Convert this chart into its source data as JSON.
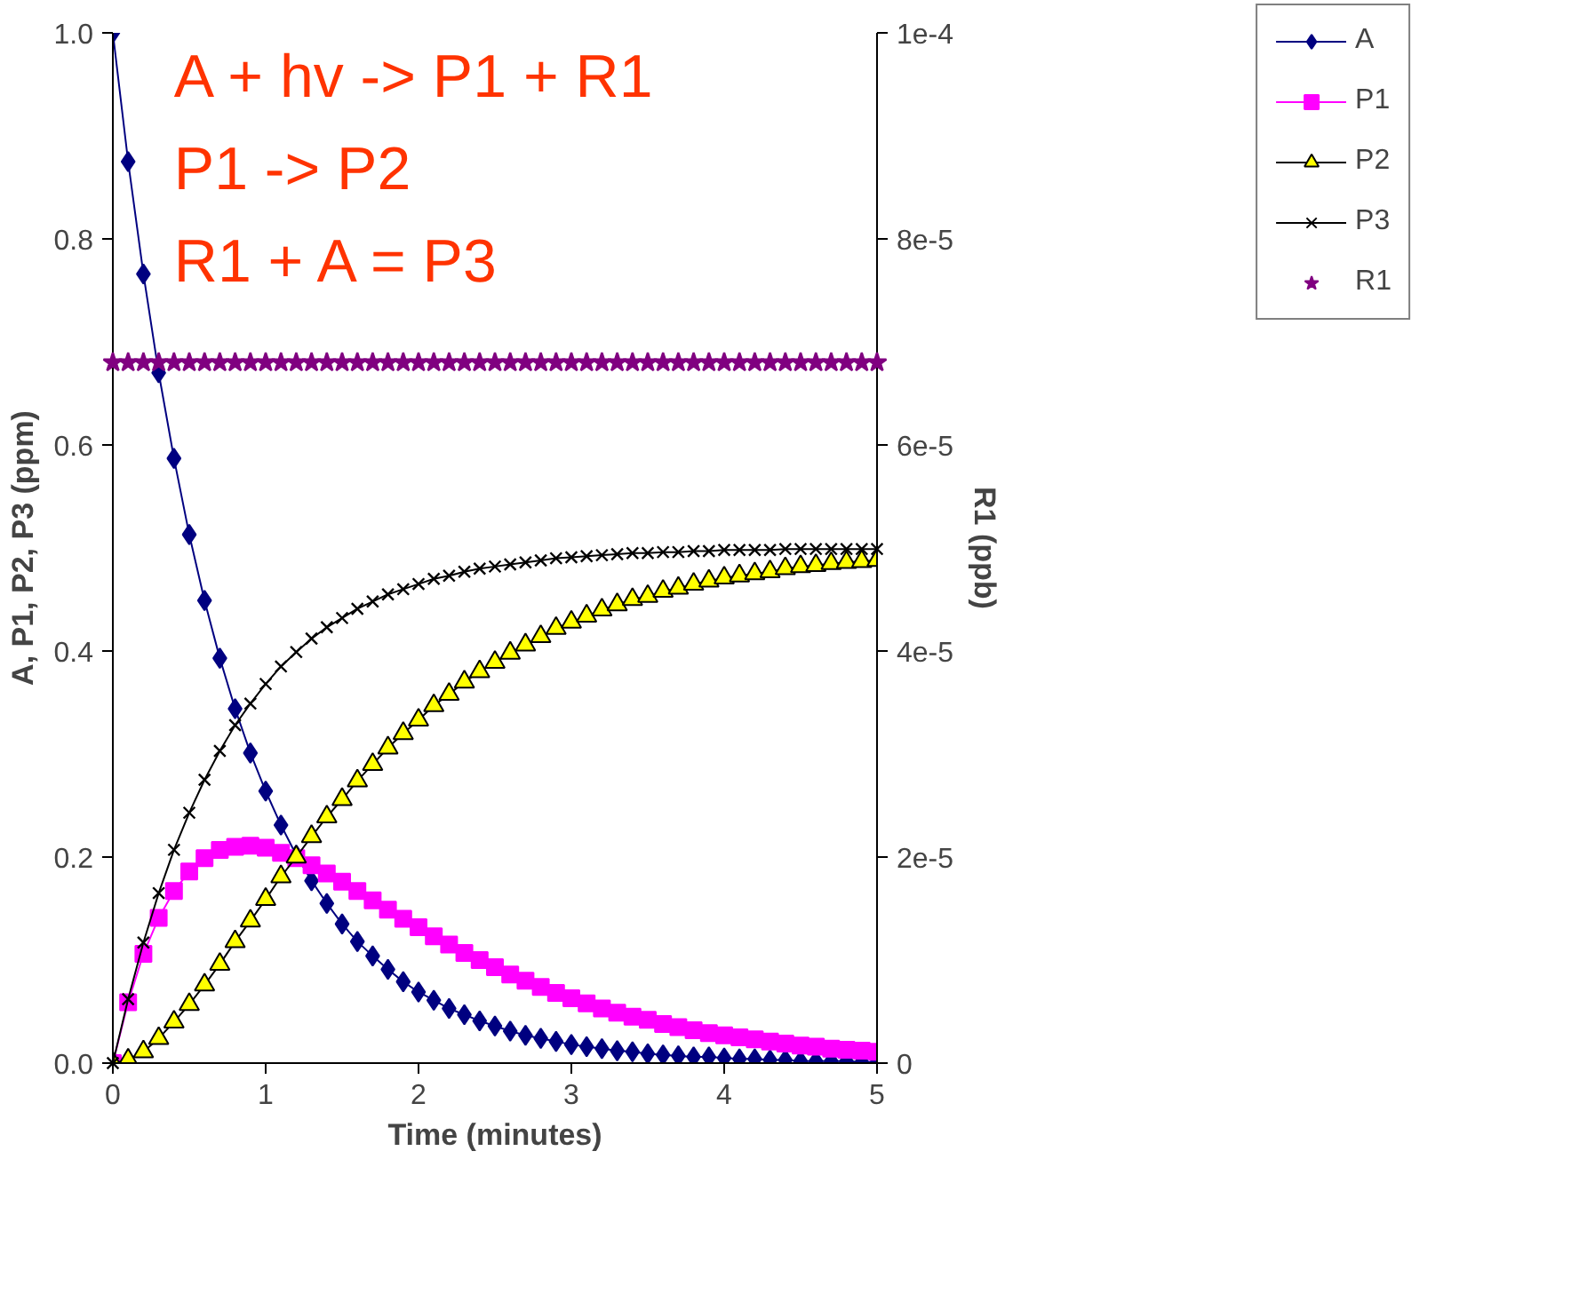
{
  "chart_data": {
    "type": "line",
    "xlabel": "Time (minutes)",
    "ylabel": "A, P1, P2, P3 (ppm)",
    "y2label": "R1 (ppb)",
    "annotations": [
      "A + hv -> P1 + R1",
      "P1 -> P2",
      "R1 + A = P3"
    ],
    "x": [
      0,
      0.1,
      0.2,
      0.3,
      0.4,
      0.5,
      0.6,
      0.7,
      0.8,
      0.9,
      1,
      1.1,
      1.2,
      1.3,
      1.4,
      1.5,
      1.6,
      1.7,
      1.8,
      1.9,
      2,
      2.1,
      2.2,
      2.3,
      2.4,
      2.5,
      2.6,
      2.7,
      2.8,
      2.9,
      3,
      3.1,
      3.2,
      3.3,
      3.4,
      3.5,
      3.6,
      3.7,
      3.8,
      3.9,
      4,
      4.1,
      4.2,
      4.3,
      4.4,
      4.5,
      4.6,
      4.7,
      4.8,
      4.9,
      5
    ],
    "series": [
      {
        "name": "A",
        "color": "#000080",
        "marker": "diamond",
        "values": [
          1,
          0.875,
          0.766,
          0.67,
          0.587,
          0.513,
          0.449,
          0.393,
          0.344,
          0.301,
          0.264,
          0.231,
          0.202,
          0.177,
          0.155,
          0.135,
          0.118,
          0.104,
          0.091,
          0.079,
          0.069,
          0.061,
          0.053,
          0.047,
          0.041,
          0.036,
          0.031,
          0.027,
          0.024,
          0.021,
          0.018,
          0.016,
          0.014,
          0.012,
          0.011,
          0.009,
          0.008,
          0.007,
          0.006,
          0.006,
          0.005,
          0.004,
          0.004,
          0.003,
          0.003,
          0.002,
          0.002,
          0.002,
          0.002,
          0.001,
          0.001
        ]
      },
      {
        "name": "P1",
        "color": "#ff00ff",
        "marker": "square",
        "values": [
          0,
          0.059,
          0.106,
          0.141,
          0.167,
          0.186,
          0.199,
          0.207,
          0.21,
          0.211,
          0.209,
          0.204,
          0.199,
          0.192,
          0.184,
          0.176,
          0.167,
          0.158,
          0.149,
          0.14,
          0.132,
          0.123,
          0.115,
          0.107,
          0.1,
          0.093,
          0.086,
          0.08,
          0.074,
          0.068,
          0.063,
          0.058,
          0.053,
          0.049,
          0.045,
          0.042,
          0.038,
          0.035,
          0.032,
          0.029,
          0.027,
          0.025,
          0.023,
          0.021,
          0.019,
          0.017,
          0.016,
          0.014,
          0.013,
          0.012,
          0.011
        ]
      },
      {
        "name": "P2",
        "color": "#ffff00",
        "marker": "triangle",
        "values": [
          0,
          0.003,
          0.011,
          0.024,
          0.04,
          0.057,
          0.076,
          0.096,
          0.118,
          0.138,
          0.159,
          0.181,
          0.2,
          0.22,
          0.239,
          0.256,
          0.274,
          0.29,
          0.306,
          0.32,
          0.333,
          0.347,
          0.358,
          0.37,
          0.38,
          0.389,
          0.398,
          0.406,
          0.414,
          0.422,
          0.428,
          0.434,
          0.44,
          0.445,
          0.45,
          0.453,
          0.458,
          0.461,
          0.465,
          0.468,
          0.471,
          0.473,
          0.475,
          0.477,
          0.48,
          0.482,
          0.483,
          0.485,
          0.486,
          0.487,
          0.488
        ]
      },
      {
        "name": "P3",
        "color": "#000000",
        "marker": "cross",
        "values": [
          0,
          0.062,
          0.117,
          0.165,
          0.207,
          0.243,
          0.275,
          0.303,
          0.328,
          0.349,
          0.368,
          0.385,
          0.399,
          0.412,
          0.423,
          0.432,
          0.441,
          0.448,
          0.455,
          0.46,
          0.465,
          0.47,
          0.473,
          0.477,
          0.48,
          0.482,
          0.484,
          0.486,
          0.488,
          0.49,
          0.491,
          0.492,
          0.493,
          0.494,
          0.495,
          0.495,
          0.496,
          0.496,
          0.497,
          0.497,
          0.498,
          0.498,
          0.498,
          0.498,
          0.499,
          0.499,
          0.499,
          0.499,
          0.499,
          0.499,
          0.499
        ]
      },
      {
        "name": "R1",
        "type": "scatter",
        "axis": "y2",
        "color": "#800080",
        "marker": "star",
        "values": [
          6.8e-05,
          6.8e-05,
          6.8e-05,
          6.8e-05,
          6.8e-05,
          6.8e-05,
          6.8e-05,
          6.8e-05,
          6.8e-05,
          6.8e-05,
          6.8e-05,
          6.8e-05,
          6.8e-05,
          6.8e-05,
          6.8e-05,
          6.8e-05,
          6.8e-05,
          6.8e-05,
          6.8e-05,
          6.8e-05,
          6.8e-05,
          6.8e-05,
          6.8e-05,
          6.8e-05,
          6.8e-05,
          6.8e-05,
          6.8e-05,
          6.8e-05,
          6.8e-05,
          6.8e-05,
          6.8e-05,
          6.8e-05,
          6.8e-05,
          6.8e-05,
          6.8e-05,
          6.8e-05,
          6.8e-05,
          6.8e-05,
          6.8e-05,
          6.8e-05,
          6.8e-05,
          6.8e-05,
          6.8e-05,
          6.8e-05,
          6.8e-05,
          6.8e-05,
          6.8e-05,
          6.8e-05,
          6.8e-05,
          6.8e-05,
          6.8e-05
        ]
      }
    ],
    "xlim": [
      0,
      5
    ],
    "xticks": [
      0,
      1,
      2,
      3,
      4,
      5
    ],
    "ylim": [
      0,
      1
    ],
    "yticks": [
      {
        "value": 0,
        "label": "0.0"
      },
      {
        "value": 0.2,
        "label": "0.2"
      },
      {
        "value": 0.4,
        "label": "0.4"
      },
      {
        "value": 0.6,
        "label": "0.6"
      },
      {
        "value": 0.8,
        "label": "0.8"
      },
      {
        "value": 1,
        "label": "1.0"
      }
    ],
    "y2lim": [
      0,
      0.0001
    ],
    "y2ticks": [
      {
        "value": 0,
        "label": "0"
      },
      {
        "value": 2e-05,
        "label": "2e-5"
      },
      {
        "value": 4e-05,
        "label": "4e-5"
      },
      {
        "value": 6e-05,
        "label": "6e-5"
      },
      {
        "value": 8e-05,
        "label": "8e-5"
      },
      {
        "value": 0.0001,
        "label": "1e-4"
      }
    ],
    "grid": false,
    "legend": "top right"
  }
}
